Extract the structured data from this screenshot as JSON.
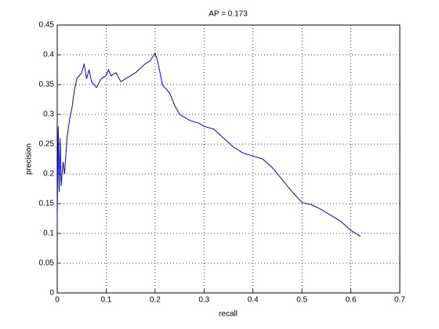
{
  "chart_data": {
    "type": "line",
    "title": "AP = 0.173",
    "x_label": "recall",
    "y_label": "precision",
    "x": [
      0,
      0.002,
      0.004,
      0.006,
      0.008,
      0.012,
      0.015,
      0.02,
      0.025,
      0.03,
      0.035,
      0.04,
      0.05,
      0.055,
      0.06,
      0.065,
      0.07,
      0.08,
      0.09,
      0.1,
      0.105,
      0.11,
      0.12,
      0.13,
      0.14,
      0.16,
      0.18,
      0.19,
      0.2,
      0.205,
      0.21,
      0.215,
      0.22,
      0.23,
      0.24,
      0.25,
      0.27,
      0.29,
      0.3,
      0.32,
      0.34,
      0.36,
      0.38,
      0.4,
      0.42,
      0.44,
      0.46,
      0.48,
      0.5,
      0.52,
      0.54,
      0.56,
      0.58,
      0.6,
      0.62
    ],
    "values": [
      0.12,
      0.28,
      0.17,
      0.26,
      0.18,
      0.22,
      0.2,
      0.26,
      0.29,
      0.31,
      0.34,
      0.36,
      0.37,
      0.385,
      0.36,
      0.375,
      0.355,
      0.345,
      0.36,
      0.365,
      0.375,
      0.365,
      0.37,
      0.355,
      0.36,
      0.37,
      0.385,
      0.39,
      0.403,
      0.39,
      0.37,
      0.35,
      0.345,
      0.335,
      0.315,
      0.3,
      0.29,
      0.285,
      0.28,
      0.275,
      0.26,
      0.245,
      0.235,
      0.23,
      0.225,
      0.21,
      0.19,
      0.17,
      0.152,
      0.148,
      0.14,
      0.13,
      0.12,
      0.105,
      0.095
    ],
    "color": "#0000ff",
    "xlim": [
      0,
      0.7
    ],
    "xticks": [
      0,
      0.1,
      0.2,
      0.3,
      0.4,
      0.5,
      0.6,
      0.7
    ],
    "ylim": [
      0,
      0.45
    ],
    "yticks": [
      0,
      0.05,
      0.1,
      0.15,
      0.2,
      0.25,
      0.3,
      0.35,
      0.4,
      0.45
    ],
    "grid": true
  }
}
